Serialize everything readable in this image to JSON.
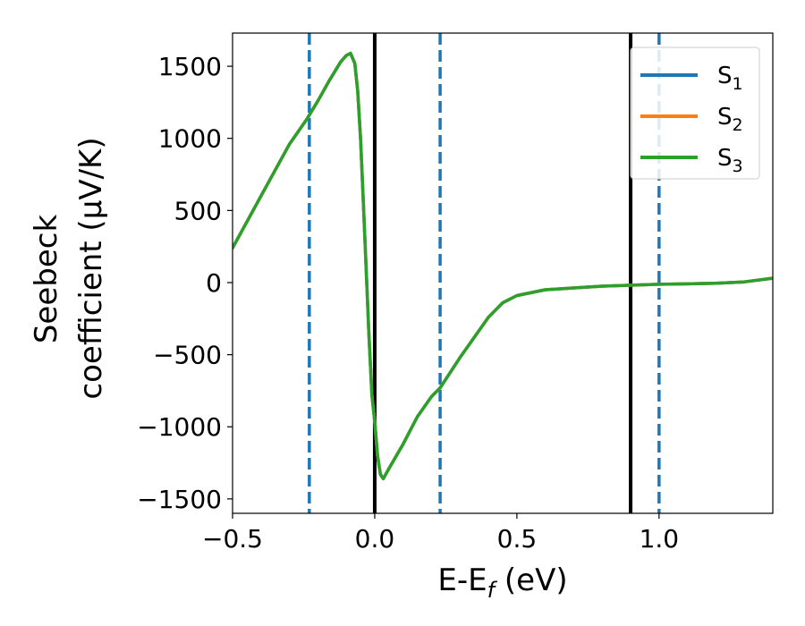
{
  "chart_data": {
    "type": "line",
    "title": "",
    "xlabel": {
      "main": "E-E",
      "sub": "f",
      "tail": " (eV)"
    },
    "ylabel": {
      "line1": "Seebeck",
      "line2": "coefficient  (μV/K)"
    },
    "xlim": [
      -0.5,
      1.4
    ],
    "ylim": [
      -1600,
      1730
    ],
    "xticks": [
      -0.5,
      0.0,
      0.5,
      1.0
    ],
    "xtick_labels": [
      "−0.5",
      "0.0",
      "0.5",
      "1.0"
    ],
    "yticks": [
      -1500,
      -1000,
      -500,
      0,
      500,
      1000,
      1500
    ],
    "ytick_labels": [
      "−1500",
      "−1000",
      "−500",
      "0",
      "500",
      "1000",
      "1500"
    ],
    "grid": false,
    "legend_position": "top-right",
    "series": [
      {
        "name": "S1",
        "label_main": "S",
        "label_sub": "1",
        "color": "#1f77b4",
        "x": [
          -0.5,
          -0.4,
          -0.3,
          -0.24,
          -0.2,
          -0.16,
          -0.12,
          -0.1,
          -0.085,
          -0.07,
          -0.06,
          -0.05,
          -0.04,
          -0.03,
          -0.02,
          -0.01,
          0.0,
          0.01,
          0.02,
          0.03,
          0.05,
          0.1,
          0.15,
          0.2,
          0.23,
          0.3,
          0.35,
          0.4,
          0.45,
          0.5,
          0.6,
          0.8,
          1.0,
          1.2,
          1.3,
          1.4
        ],
        "y": [
          240,
          600,
          960,
          1130,
          1260,
          1400,
          1530,
          1575,
          1590,
          1520,
          1330,
          1000,
          560,
          90,
          -380,
          -780,
          -960,
          -1200,
          -1330,
          -1360,
          -1290,
          -1120,
          -930,
          -790,
          -730,
          -520,
          -380,
          -240,
          -140,
          -90,
          -50,
          -25,
          -12,
          -5,
          5,
          30
        ]
      },
      {
        "name": "S2",
        "label_main": "S",
        "label_sub": "2",
        "color": "#ff7f0e",
        "x": [
          -0.5,
          -0.4,
          -0.3,
          -0.24,
          -0.2,
          -0.16,
          -0.12,
          -0.1,
          -0.085,
          -0.07,
          -0.06,
          -0.05,
          -0.04,
          -0.03,
          -0.02,
          -0.01,
          0.0,
          0.01,
          0.02,
          0.03,
          0.05,
          0.1,
          0.15,
          0.2,
          0.23,
          0.3,
          0.35,
          0.4,
          0.45,
          0.5,
          0.6,
          0.8,
          1.0,
          1.2,
          1.3,
          1.4
        ],
        "y": [
          240,
          600,
          960,
          1130,
          1260,
          1400,
          1530,
          1575,
          1590,
          1520,
          1330,
          1000,
          560,
          90,
          -380,
          -780,
          -960,
          -1200,
          -1330,
          -1360,
          -1290,
          -1120,
          -930,
          -790,
          -730,
          -520,
          -380,
          -240,
          -140,
          -90,
          -50,
          -25,
          -12,
          -5,
          5,
          30
        ]
      },
      {
        "name": "S3",
        "label_main": "S",
        "label_sub": "3",
        "color": "#2ca02c",
        "x": [
          -0.5,
          -0.4,
          -0.3,
          -0.24,
          -0.2,
          -0.16,
          -0.12,
          -0.1,
          -0.085,
          -0.07,
          -0.06,
          -0.05,
          -0.04,
          -0.03,
          -0.02,
          -0.01,
          0.0,
          0.01,
          0.02,
          0.03,
          0.05,
          0.1,
          0.15,
          0.2,
          0.23,
          0.3,
          0.35,
          0.4,
          0.45,
          0.5,
          0.6,
          0.8,
          1.0,
          1.2,
          1.3,
          1.4
        ],
        "y": [
          240,
          600,
          960,
          1130,
          1260,
          1400,
          1530,
          1575,
          1590,
          1520,
          1330,
          1000,
          560,
          90,
          -380,
          -780,
          -960,
          -1200,
          -1330,
          -1360,
          -1290,
          -1120,
          -930,
          -790,
          -730,
          -520,
          -380,
          -240,
          -140,
          -90,
          -50,
          -25,
          -12,
          -5,
          5,
          30
        ]
      }
    ],
    "vertical_lines": [
      {
        "x": -0.23,
        "style": "dashed",
        "color": "#1f77b4"
      },
      {
        "x": 0.0,
        "style": "solid",
        "color": "#000000"
      },
      {
        "x": 0.23,
        "style": "dashed",
        "color": "#1f77b4"
      },
      {
        "x": 0.9,
        "style": "solid",
        "color": "#000000"
      },
      {
        "x": 1.0,
        "style": "dashed",
        "color": "#1f77b4"
      }
    ]
  }
}
